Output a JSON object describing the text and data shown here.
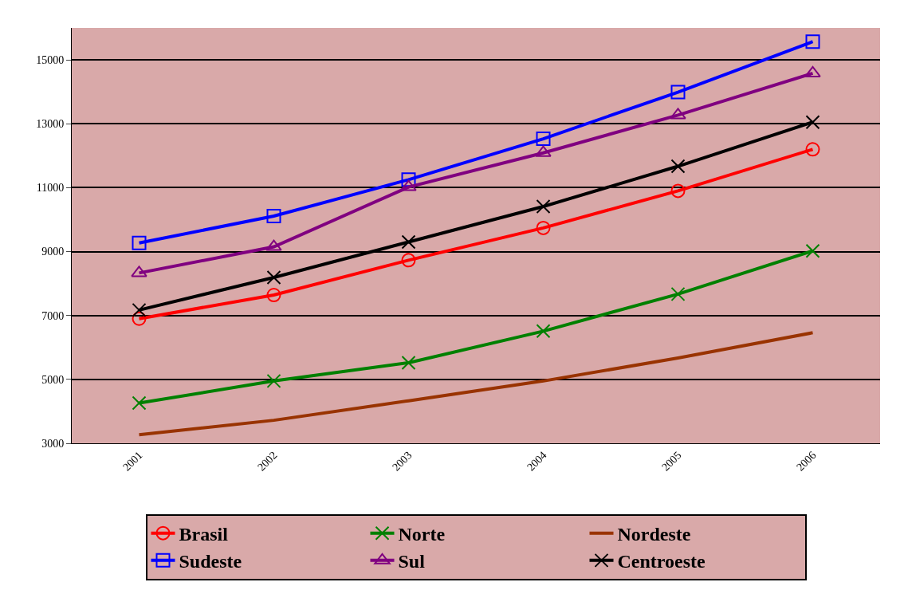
{
  "chart_data": {
    "type": "line",
    "categories": [
      "2001",
      "2002",
      "2003",
      "2004",
      "2005",
      "2006"
    ],
    "series": [
      {
        "name": "Brasil",
        "color": "#ff0000",
        "marker": "circle",
        "values": [
          6900,
          7640,
          8730,
          9740,
          10900,
          12200
        ]
      },
      {
        "name": "Norte",
        "color": "#008000",
        "marker": "cross",
        "values": [
          4260,
          4950,
          5520,
          6510,
          7670,
          9020
        ]
      },
      {
        "name": "Nordeste",
        "color": "#993300",
        "marker": "none",
        "values": [
          3270,
          3720,
          4330,
          4950,
          5670,
          6460
        ]
      },
      {
        "name": "Sudeste",
        "color": "#0000ff",
        "marker": "square",
        "values": [
          9270,
          10110,
          11250,
          12530,
          13990,
          15570
        ]
      },
      {
        "name": "Sul",
        "color": "#800080",
        "marker": "triangle",
        "values": [
          8330,
          9150,
          11020,
          12090,
          13270,
          14580
        ]
      },
      {
        "name": "Centroeste",
        "color": "#000000",
        "marker": "cross",
        "values": [
          7170,
          8190,
          9300,
          10410,
          11670,
          13050
        ]
      }
    ],
    "ylim": [
      3000,
      16000
    ],
    "yticks": [
      3000,
      5000,
      7000,
      9000,
      11000,
      13000,
      15000
    ],
    "grid": "y",
    "legend": "bottom",
    "line_style": "solid"
  }
}
